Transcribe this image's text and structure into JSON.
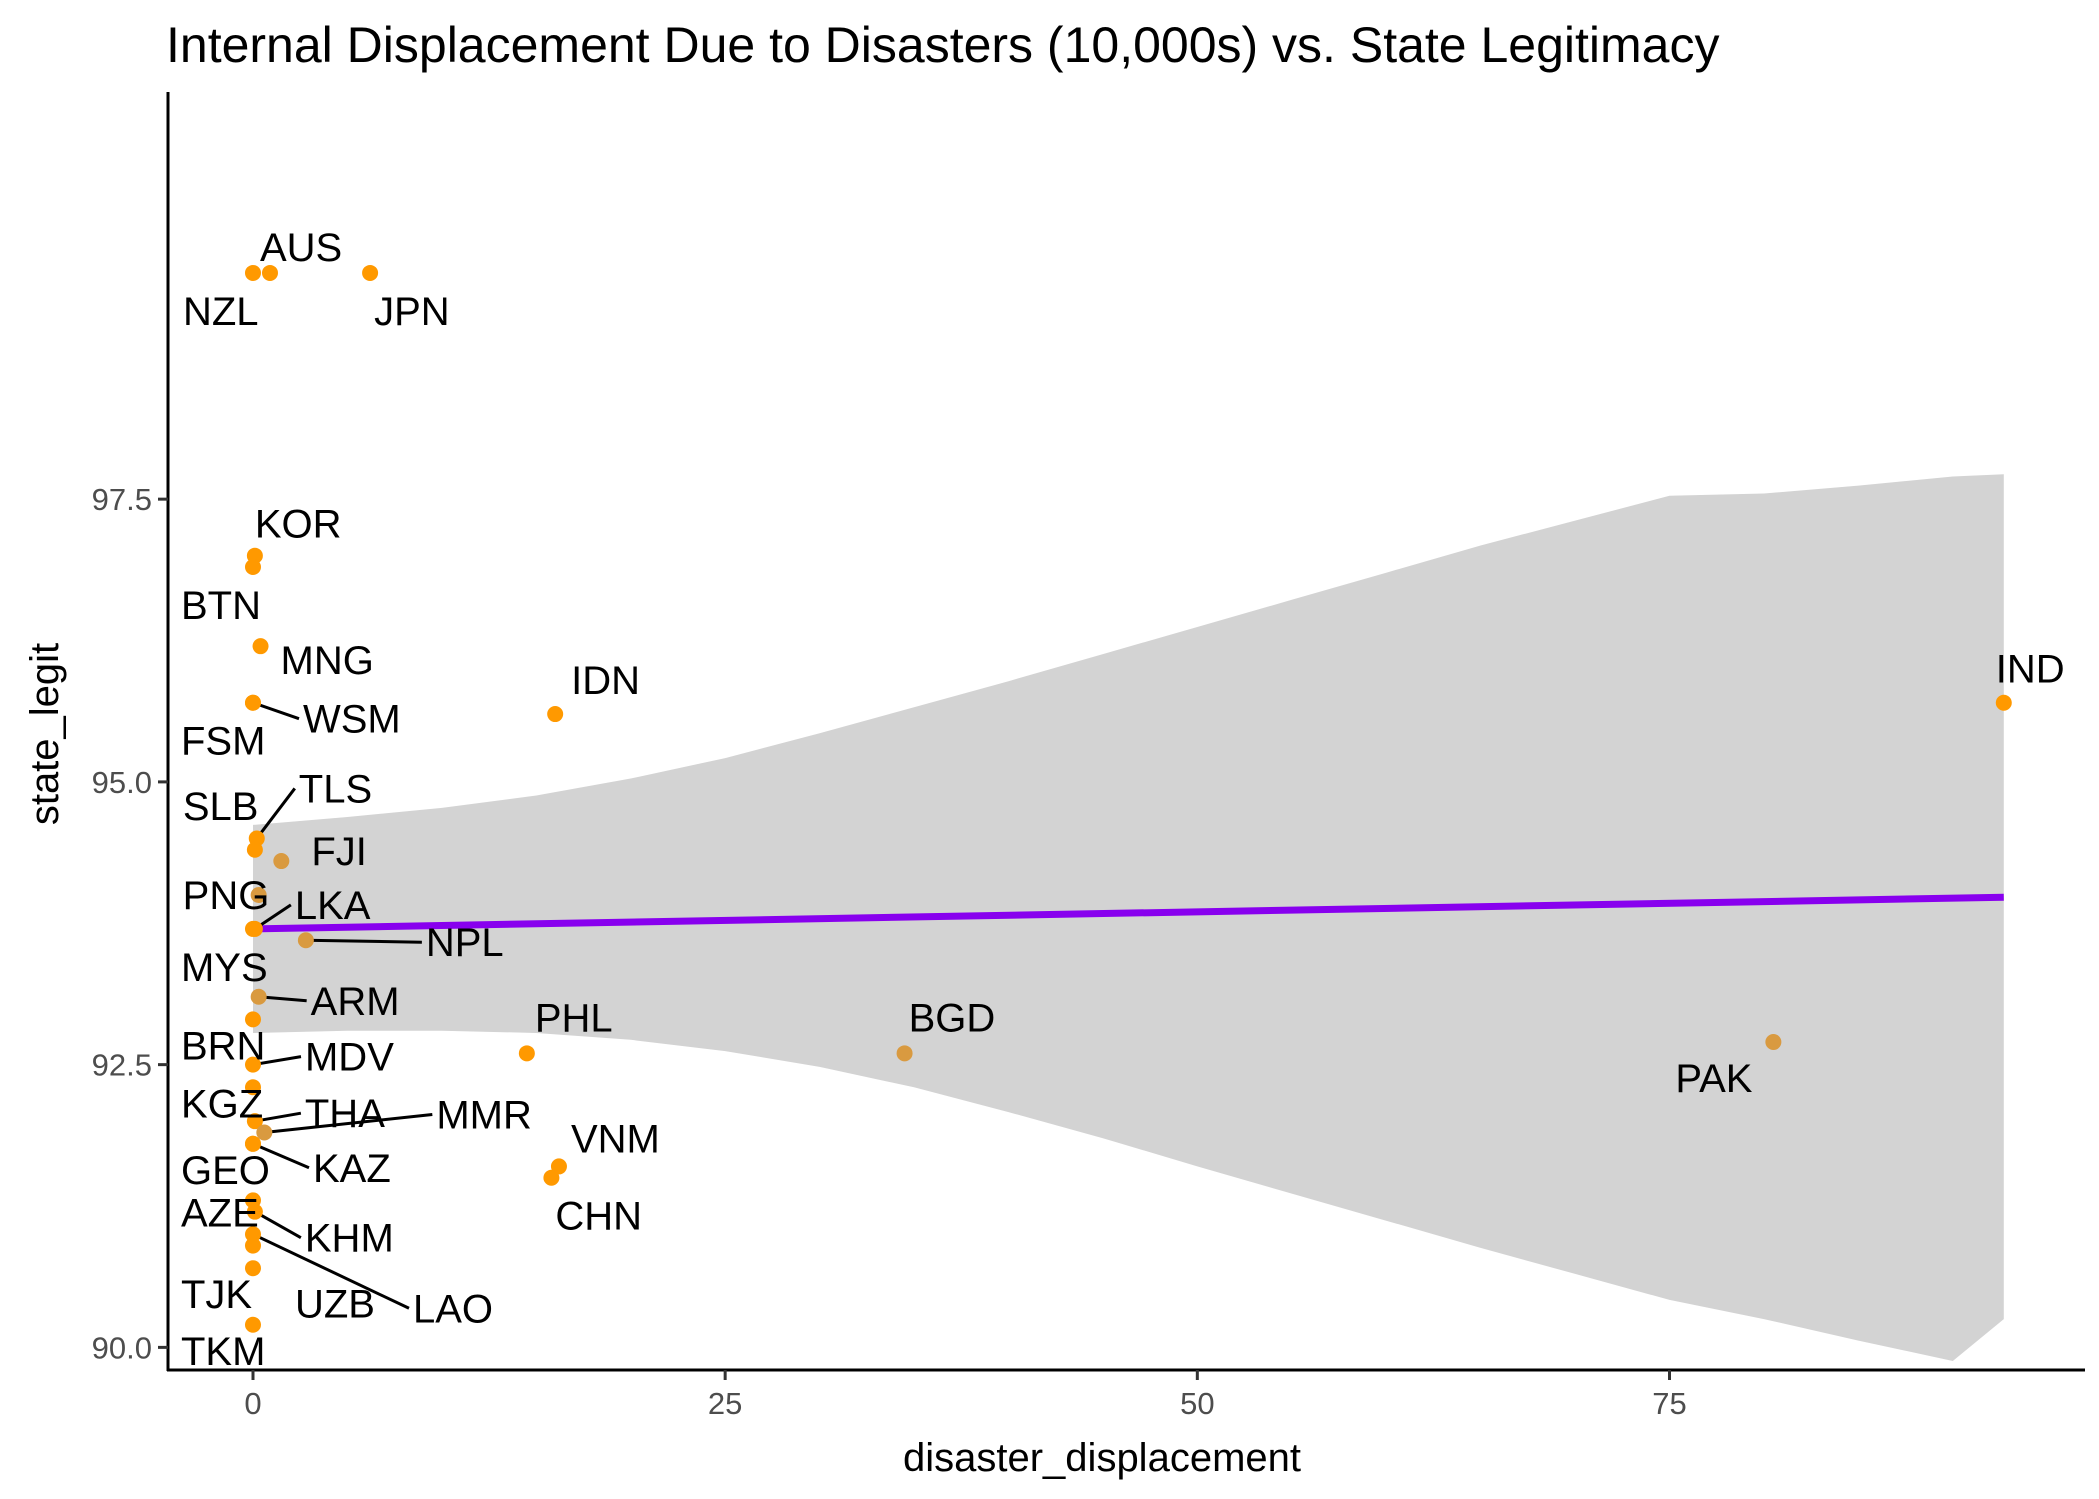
{
  "chart_data": {
    "type": "scatter",
    "title": "Internal Displacement Due to Disasters (10,000s) vs. State Legitimacy",
    "xlabel": "disaster_displacement",
    "ylabel": "state_legit",
    "xlim": [
      -4.5,
      97
    ],
    "ylim": [
      89.8,
      101.1
    ],
    "x_ticks": [
      0,
      25,
      50,
      75
    ],
    "x_tick_labels": [
      "0",
      "25",
      "50",
      "75"
    ],
    "y_ticks": [
      90.0,
      92.5,
      95.0,
      97.5
    ],
    "y_tick_labels": [
      "90.0",
      "92.5",
      "95.0",
      "97.5"
    ],
    "colors": {
      "point": "#FF9900",
      "point_alt": "#D99A40",
      "fit_line": "#8800EE",
      "ribbon": "#d3d3d3",
      "axis": "#000000"
    },
    "points": [
      {
        "label": "AUS",
        "x": 0.9,
        "y": 99.5
      },
      {
        "label": "NZL",
        "x": 0.0,
        "y": 99.5
      },
      {
        "label": "JPN",
        "x": 6.2,
        "y": 99.5
      },
      {
        "label": "KOR",
        "x": 0.1,
        "y": 97.0
      },
      {
        "label": "BTN",
        "x": 0.0,
        "y": 96.9
      },
      {
        "label": "MNG",
        "x": 0.4,
        "y": 96.2
      },
      {
        "label": "WSM",
        "x": 0.0,
        "y": 95.7
      },
      {
        "label": "FSM",
        "x": 0.0,
        "y": 95.7
      },
      {
        "label": "IDN",
        "x": 16.0,
        "y": 95.6
      },
      {
        "label": "IND",
        "x": 92.7,
        "y": 95.7
      },
      {
        "label": "TLS",
        "x": 0.2,
        "y": 94.5
      },
      {
        "label": "SLB",
        "x": 0.1,
        "y": 94.4
      },
      {
        "label": "FJI",
        "x": 1.5,
        "y": 94.3
      },
      {
        "label": "PNG",
        "x": 0.3,
        "y": 94.0
      },
      {
        "label": "LKA",
        "x": 0.1,
        "y": 93.7
      },
      {
        "label": "MYS",
        "x": 0.0,
        "y": 93.7
      },
      {
        "label": "NPL",
        "x": 2.8,
        "y": 93.6
      },
      {
        "label": "ARM",
        "x": 0.3,
        "y": 93.1
      },
      {
        "label": "BRN",
        "x": 0.0,
        "y": 92.9
      },
      {
        "label": "PHL",
        "x": 14.5,
        "y": 92.6
      },
      {
        "label": "BGD",
        "x": 34.5,
        "y": 92.6
      },
      {
        "label": "PAK",
        "x": 80.5,
        "y": 92.7
      },
      {
        "label": "MDV",
        "x": 0.0,
        "y": 92.5
      },
      {
        "label": "KGZ",
        "x": 0.0,
        "y": 92.3
      },
      {
        "label": "THA",
        "x": 0.1,
        "y": 92.0
      },
      {
        "label": "MMR",
        "x": 0.6,
        "y": 91.9
      },
      {
        "label": "KAZ",
        "x": 0.0,
        "y": 91.8
      },
      {
        "label": "GEO",
        "x": 0.0,
        "y": 91.8
      },
      {
        "label": "VNM",
        "x": 16.2,
        "y": 91.6
      },
      {
        "label": "CHN",
        "x": 15.8,
        "y": 91.5
      },
      {
        "label": "AZE",
        "x": 0.0,
        "y": 91.3
      },
      {
        "label": "KHM",
        "x": 0.1,
        "y": 91.2
      },
      {
        "label": "LAO",
        "x": 0.0,
        "y": 91.0
      },
      {
        "label": "UZB",
        "x": 0.0,
        "y": 90.9
      },
      {
        "label": "TJK",
        "x": 0.0,
        "y": 90.7
      },
      {
        "label": "TKM",
        "x": 0.0,
        "y": 90.2
      }
    ],
    "fit_line": {
      "x": [
        0,
        92.7
      ],
      "y": [
        93.7,
        93.98
      ]
    },
    "confidence_band": {
      "x": [
        0,
        5,
        10,
        15,
        20,
        25,
        30,
        35,
        40,
        45,
        50,
        55,
        60,
        65,
        70,
        75,
        80,
        85,
        90,
        92.7
      ],
      "lower": [
        92.78,
        92.8,
        92.8,
        92.78,
        92.72,
        92.62,
        92.48,
        92.3,
        92.08,
        91.85,
        91.6,
        91.36,
        91.12,
        90.88,
        90.65,
        90.42,
        90.25,
        90.06,
        89.88,
        90.25
      ],
      "upper": [
        94.62,
        94.69,
        94.77,
        94.88,
        95.03,
        95.21,
        95.43,
        95.66,
        95.89,
        96.13,
        96.37,
        96.61,
        96.85,
        97.09,
        97.31,
        97.53,
        97.55,
        97.62,
        97.7,
        97.72
      ]
    }
  }
}
